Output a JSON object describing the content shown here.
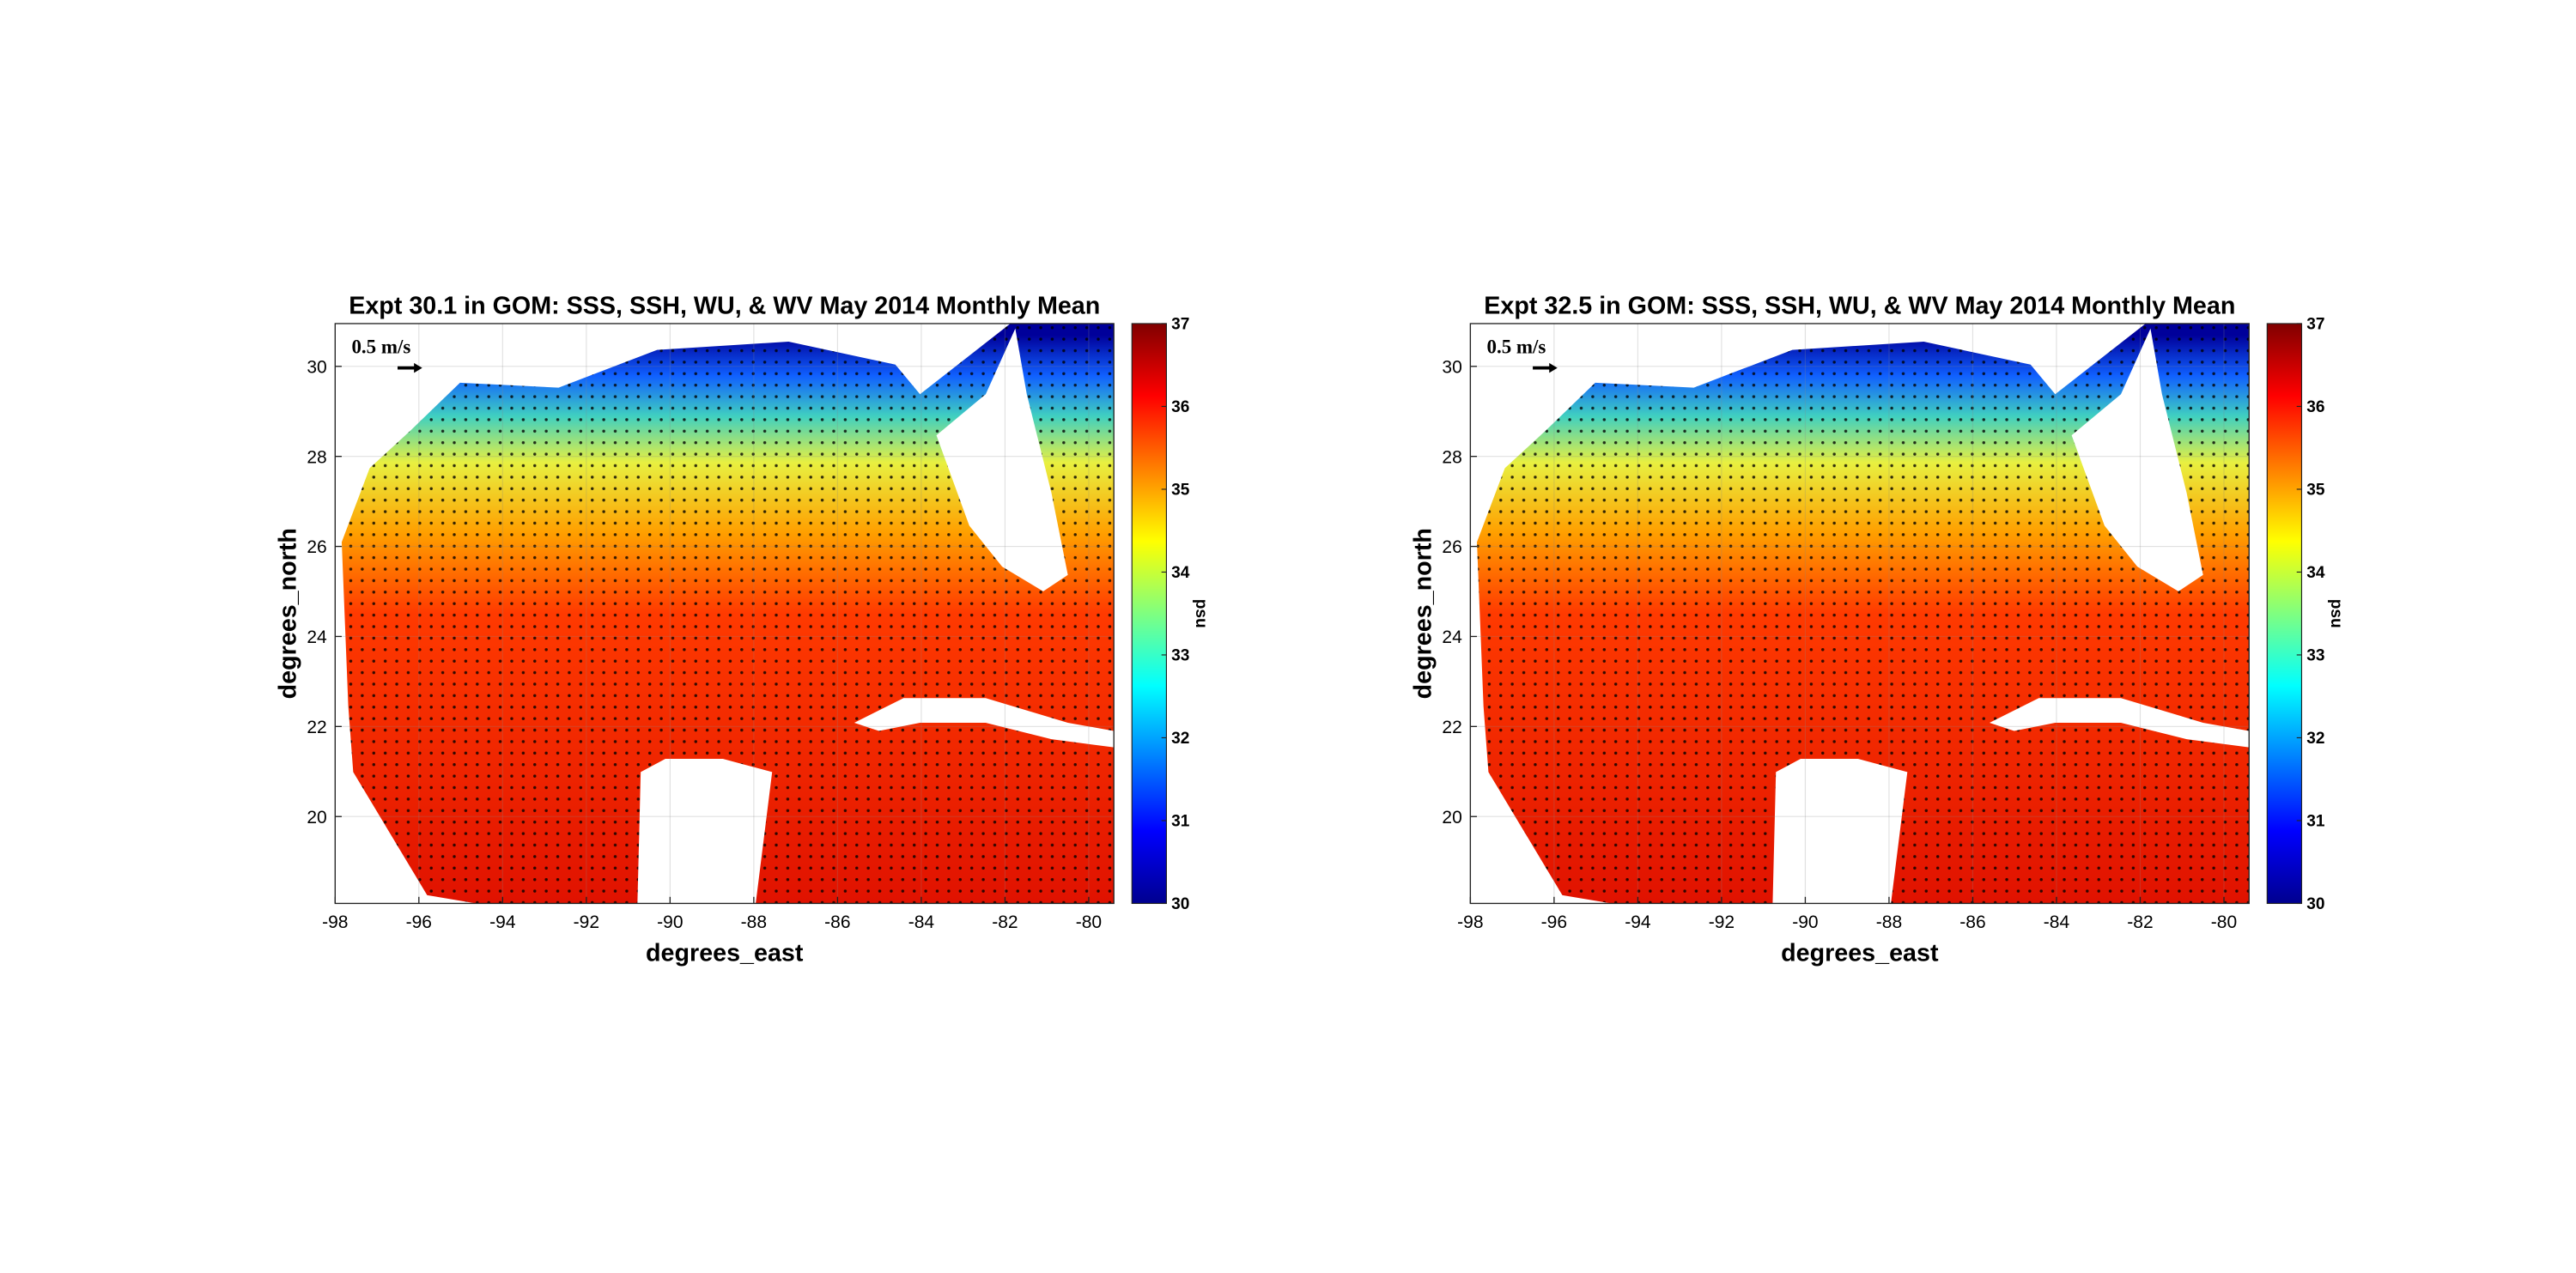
{
  "chart_data": [
    {
      "type": "map",
      "title": "Expt 30.1 in GOM: SSS, SSH, WU, & WV May 2014 Monthly Mean",
      "x_label": "degrees_east",
      "y_label": "degrees_north",
      "xlim": [
        -98,
        -79.4
      ],
      "ylim": [
        18.07,
        30.95
      ],
      "xticks": [
        -98,
        -96,
        -94,
        -92,
        -90,
        -88,
        -86,
        -84,
        -82,
        -80
      ],
      "yticks": [
        20,
        22,
        24,
        26,
        28,
        30
      ],
      "grid": true,
      "annotation": "0.5 m/s",
      "colorbar": {
        "label": "psu",
        "lim": [
          30,
          37
        ],
        "ticks": [
          30,
          31,
          32,
          33,
          34,
          35,
          36,
          37
        ]
      }
    },
    {
      "type": "map",
      "title": "Expt 32.5 in GOM: SSS, SSH, WU, & WV May 2014 Monthly Mean",
      "x_label": "degrees_east",
      "y_label": "degrees_north",
      "xlim": [
        -98,
        -79.4
      ],
      "ylim": [
        18.07,
        30.95
      ],
      "xticks": [
        -98,
        -96,
        -94,
        -92,
        -90,
        -88,
        -86,
        -84,
        -82,
        -80
      ],
      "yticks": [
        20,
        22,
        24,
        26,
        28,
        30
      ],
      "grid": true,
      "annotation": "0.5 m/s",
      "colorbar": {
        "label": "psu",
        "lim": [
          30,
          37
        ],
        "ticks": [
          30,
          31,
          32,
          33,
          34,
          35,
          36,
          37
        ]
      }
    }
  ]
}
